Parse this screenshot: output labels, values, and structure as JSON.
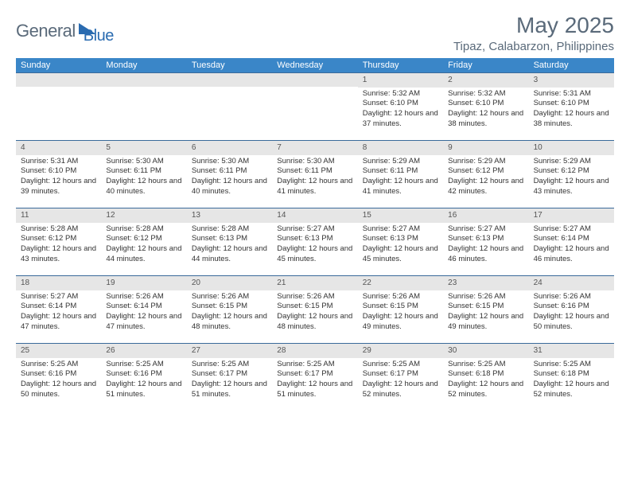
{
  "logo": {
    "general": "General",
    "blue": "Blue"
  },
  "title": "May 2025",
  "location": "Tipaz, Calabarzon, Philippines",
  "colors": {
    "header_bg": "#3a86c8",
    "header_text": "#ffffff",
    "daynum_bg": "#e6e6e6",
    "border": "#3a6a9a",
    "text_muted": "#5a6a7a",
    "logo_blue": "#2a6bb0"
  },
  "typography": {
    "title_fontsize": 28,
    "location_fontsize": 15,
    "dow_fontsize": 11,
    "body_fontsize": 9.5
  },
  "dows": [
    "Sunday",
    "Monday",
    "Tuesday",
    "Wednesday",
    "Thursday",
    "Friday",
    "Saturday"
  ],
  "weeks": [
    [
      null,
      null,
      null,
      null,
      {
        "n": "1",
        "sr": "Sunrise: 5:32 AM",
        "ss": "Sunset: 6:10 PM",
        "dl": "Daylight: 12 hours and 37 minutes."
      },
      {
        "n": "2",
        "sr": "Sunrise: 5:32 AM",
        "ss": "Sunset: 6:10 PM",
        "dl": "Daylight: 12 hours and 38 minutes."
      },
      {
        "n": "3",
        "sr": "Sunrise: 5:31 AM",
        "ss": "Sunset: 6:10 PM",
        "dl": "Daylight: 12 hours and 38 minutes."
      }
    ],
    [
      {
        "n": "4",
        "sr": "Sunrise: 5:31 AM",
        "ss": "Sunset: 6:10 PM",
        "dl": "Daylight: 12 hours and 39 minutes."
      },
      {
        "n": "5",
        "sr": "Sunrise: 5:30 AM",
        "ss": "Sunset: 6:11 PM",
        "dl": "Daylight: 12 hours and 40 minutes."
      },
      {
        "n": "6",
        "sr": "Sunrise: 5:30 AM",
        "ss": "Sunset: 6:11 PM",
        "dl": "Daylight: 12 hours and 40 minutes."
      },
      {
        "n": "7",
        "sr": "Sunrise: 5:30 AM",
        "ss": "Sunset: 6:11 PM",
        "dl": "Daylight: 12 hours and 41 minutes."
      },
      {
        "n": "8",
        "sr": "Sunrise: 5:29 AM",
        "ss": "Sunset: 6:11 PM",
        "dl": "Daylight: 12 hours and 41 minutes."
      },
      {
        "n": "9",
        "sr": "Sunrise: 5:29 AM",
        "ss": "Sunset: 6:12 PM",
        "dl": "Daylight: 12 hours and 42 minutes."
      },
      {
        "n": "10",
        "sr": "Sunrise: 5:29 AM",
        "ss": "Sunset: 6:12 PM",
        "dl": "Daylight: 12 hours and 43 minutes."
      }
    ],
    [
      {
        "n": "11",
        "sr": "Sunrise: 5:28 AM",
        "ss": "Sunset: 6:12 PM",
        "dl": "Daylight: 12 hours and 43 minutes."
      },
      {
        "n": "12",
        "sr": "Sunrise: 5:28 AM",
        "ss": "Sunset: 6:12 PM",
        "dl": "Daylight: 12 hours and 44 minutes."
      },
      {
        "n": "13",
        "sr": "Sunrise: 5:28 AM",
        "ss": "Sunset: 6:13 PM",
        "dl": "Daylight: 12 hours and 44 minutes."
      },
      {
        "n": "14",
        "sr": "Sunrise: 5:27 AM",
        "ss": "Sunset: 6:13 PM",
        "dl": "Daylight: 12 hours and 45 minutes."
      },
      {
        "n": "15",
        "sr": "Sunrise: 5:27 AM",
        "ss": "Sunset: 6:13 PM",
        "dl": "Daylight: 12 hours and 45 minutes."
      },
      {
        "n": "16",
        "sr": "Sunrise: 5:27 AM",
        "ss": "Sunset: 6:13 PM",
        "dl": "Daylight: 12 hours and 46 minutes."
      },
      {
        "n": "17",
        "sr": "Sunrise: 5:27 AM",
        "ss": "Sunset: 6:14 PM",
        "dl": "Daylight: 12 hours and 46 minutes."
      }
    ],
    [
      {
        "n": "18",
        "sr": "Sunrise: 5:27 AM",
        "ss": "Sunset: 6:14 PM",
        "dl": "Daylight: 12 hours and 47 minutes."
      },
      {
        "n": "19",
        "sr": "Sunrise: 5:26 AM",
        "ss": "Sunset: 6:14 PM",
        "dl": "Daylight: 12 hours and 47 minutes."
      },
      {
        "n": "20",
        "sr": "Sunrise: 5:26 AM",
        "ss": "Sunset: 6:15 PM",
        "dl": "Daylight: 12 hours and 48 minutes."
      },
      {
        "n": "21",
        "sr": "Sunrise: 5:26 AM",
        "ss": "Sunset: 6:15 PM",
        "dl": "Daylight: 12 hours and 48 minutes."
      },
      {
        "n": "22",
        "sr": "Sunrise: 5:26 AM",
        "ss": "Sunset: 6:15 PM",
        "dl": "Daylight: 12 hours and 49 minutes."
      },
      {
        "n": "23",
        "sr": "Sunrise: 5:26 AM",
        "ss": "Sunset: 6:15 PM",
        "dl": "Daylight: 12 hours and 49 minutes."
      },
      {
        "n": "24",
        "sr": "Sunrise: 5:26 AM",
        "ss": "Sunset: 6:16 PM",
        "dl": "Daylight: 12 hours and 50 minutes."
      }
    ],
    [
      {
        "n": "25",
        "sr": "Sunrise: 5:25 AM",
        "ss": "Sunset: 6:16 PM",
        "dl": "Daylight: 12 hours and 50 minutes."
      },
      {
        "n": "26",
        "sr": "Sunrise: 5:25 AM",
        "ss": "Sunset: 6:16 PM",
        "dl": "Daylight: 12 hours and 51 minutes."
      },
      {
        "n": "27",
        "sr": "Sunrise: 5:25 AM",
        "ss": "Sunset: 6:17 PM",
        "dl": "Daylight: 12 hours and 51 minutes."
      },
      {
        "n": "28",
        "sr": "Sunrise: 5:25 AM",
        "ss": "Sunset: 6:17 PM",
        "dl": "Daylight: 12 hours and 51 minutes."
      },
      {
        "n": "29",
        "sr": "Sunrise: 5:25 AM",
        "ss": "Sunset: 6:17 PM",
        "dl": "Daylight: 12 hours and 52 minutes."
      },
      {
        "n": "30",
        "sr": "Sunrise: 5:25 AM",
        "ss": "Sunset: 6:18 PM",
        "dl": "Daylight: 12 hours and 52 minutes."
      },
      {
        "n": "31",
        "sr": "Sunrise: 5:25 AM",
        "ss": "Sunset: 6:18 PM",
        "dl": "Daylight: 12 hours and 52 minutes."
      }
    ]
  ]
}
